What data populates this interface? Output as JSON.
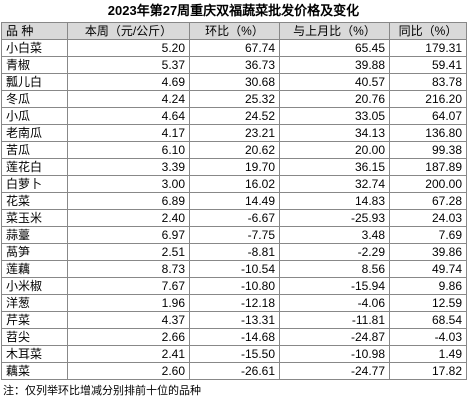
{
  "title": "2023年第27周重庆双福蔬菜批发价格及变化",
  "table": {
    "header": [
      "品 种",
      "本周（元/公斤）",
      "环比（%）",
      "与上月比（%）",
      "同比（%）"
    ],
    "rows": [
      [
        "小白菜",
        "5.20",
        "67.74",
        "65.45",
        "179.31"
      ],
      [
        "青椒",
        "5.37",
        "36.73",
        "39.88",
        "59.41"
      ],
      [
        "瓢儿白",
        "4.69",
        "30.68",
        "40.57",
        "83.78"
      ],
      [
        "冬瓜",
        "4.24",
        "25.32",
        "20.76",
        "216.20"
      ],
      [
        "小瓜",
        "4.64",
        "24.52",
        "33.05",
        "64.07"
      ],
      [
        "老南瓜",
        "4.17",
        "23.21",
        "34.13",
        "136.80"
      ],
      [
        "苦瓜",
        "6.10",
        "20.62",
        "20.00",
        "99.38"
      ],
      [
        "莲花白",
        "3.39",
        "19.70",
        "36.15",
        "187.89"
      ],
      [
        "白萝卜",
        "3.00",
        "16.02",
        "32.74",
        "200.00"
      ],
      [
        "花菜",
        "6.89",
        "14.49",
        "14.83",
        "67.28"
      ],
      [
        "菜玉米",
        "2.40",
        "-6.67",
        "-25.93",
        "24.03"
      ],
      [
        "蒜薹",
        "6.97",
        "-7.75",
        "3.48",
        "7.69"
      ],
      [
        "萵笋",
        "2.51",
        "-8.81",
        "-2.29",
        "39.86"
      ],
      [
        "莲藕",
        "8.73",
        "-10.54",
        "8.56",
        "49.74"
      ],
      [
        "小米椒",
        "7.67",
        "-10.80",
        "-15.94",
        "9.86"
      ],
      [
        "洋葱",
        "1.96",
        "-12.18",
        "-4.06",
        "12.59"
      ],
      [
        "芹菜",
        "4.37",
        "-13.31",
        "-11.81",
        "68.54"
      ],
      [
        "苕尖",
        "2.66",
        "-14.68",
        "-24.87",
        "-4.03"
      ],
      [
        "木耳菜",
        "2.41",
        "-15.50",
        "-10.98",
        "1.49"
      ],
      [
        "藕菜",
        "2.60",
        "-26.61",
        "-24.77",
        "17.82"
      ]
    ]
  },
  "note": "注：仅列举环比增减分别排前十位的品种"
}
